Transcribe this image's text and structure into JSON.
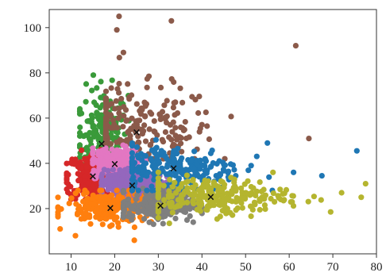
{
  "chart_data": {
    "type": "scatter",
    "title": "",
    "xlabel": "",
    "ylabel": "",
    "xlim": [
      5,
      80
    ],
    "ylim": [
      0,
      108
    ],
    "x_ticks": [
      10,
      20,
      30,
      40,
      50,
      60,
      70,
      80
    ],
    "y_ticks": [
      20,
      40,
      60,
      80,
      100
    ],
    "x_tick_labels": [
      "10",
      "20",
      "30",
      "40",
      "50",
      "60",
      "70",
      "80"
    ],
    "y_tick_labels": [
      "20",
      "40",
      "60",
      "80",
      "100"
    ],
    "grid": false,
    "legend": "none",
    "point_count_per_cluster": "dense",
    "clusters": [
      {
        "color": "#3a9a3a",
        "centroid": [
          17,
          49
        ],
        "spread": [
          3.0,
          12.0
        ],
        "range_x": [
          12,
          24
        ],
        "range_y": [
          35,
          88
        ]
      },
      {
        "color": "#8b5a4a",
        "centroid": [
          25,
          54
        ],
        "spread": [
          9.0,
          10.0
        ],
        "range_x": [
          18,
          65
        ],
        "range_y": [
          42,
          106
        ]
      },
      {
        "color": "#d62728",
        "centroid": [
          15,
          34.5
        ],
        "spread": [
          3.0,
          5.0
        ],
        "range_x": [
          9,
          22
        ],
        "range_y": [
          24,
          46
        ]
      },
      {
        "color": "#e377c2",
        "centroid": [
          20,
          40
        ],
        "spread": [
          3.0,
          3.5
        ],
        "range_x": [
          15,
          27
        ],
        "range_y": [
          32,
          48
        ]
      },
      {
        "color": "#9467bd",
        "centroid": [
          24,
          30.5
        ],
        "spread": [
          4.0,
          3.0
        ],
        "range_x": [
          17,
          32
        ],
        "range_y": [
          24,
          38
        ]
      },
      {
        "color": "#ff7f0e",
        "centroid": [
          19,
          20.5
        ],
        "spread": [
          5.0,
          3.5
        ],
        "range_x": [
          7,
          30
        ],
        "range_y": [
          8,
          28
        ]
      },
      {
        "color": "#7f7f7f",
        "centroid": [
          30.5,
          21.5
        ],
        "spread": [
          4.5,
          3.5
        ],
        "range_x": [
          22,
          40
        ],
        "range_y": [
          12,
          30
        ]
      },
      {
        "color": "#1f77b4",
        "centroid": [
          33.5,
          38
        ],
        "spread": [
          8.0,
          5.0
        ],
        "range_x": [
          24,
          76
        ],
        "range_y": [
          28,
          55
        ]
      },
      {
        "color": "#b5b52f",
        "centroid": [
          42,
          25.5
        ],
        "spread": [
          9.0,
          4.0
        ],
        "range_x": [
          30,
          78
        ],
        "range_y": [
          11,
          36
        ]
      }
    ],
    "centroid_marker": {
      "symbol": "×",
      "color": "#111111"
    },
    "outliers": [
      {
        "x": 21,
        "y": 105,
        "color": "#8b5a4a"
      },
      {
        "x": 33,
        "y": 103,
        "color": "#8b5a4a"
      },
      {
        "x": 20.5,
        "y": 99,
        "color": "#8b5a4a"
      },
      {
        "x": 61.5,
        "y": 92,
        "color": "#8b5a4a"
      },
      {
        "x": 22,
        "y": 89,
        "color": "#8b5a4a"
      },
      {
        "x": 64.5,
        "y": 51,
        "color": "#8b5a4a"
      },
      {
        "x": 55,
        "y": 49,
        "color": "#1f77b4"
      },
      {
        "x": 75.5,
        "y": 45.5,
        "color": "#1f77b4"
      },
      {
        "x": 67.5,
        "y": 34.5,
        "color": "#1f77b4"
      },
      {
        "x": 61,
        "y": 36,
        "color": "#1f77b4"
      },
      {
        "x": 77.5,
        "y": 31,
        "color": "#b5b52f"
      },
      {
        "x": 76.5,
        "y": 25,
        "color": "#b5b52f"
      },
      {
        "x": 72,
        "y": 27,
        "color": "#b5b52f"
      },
      {
        "x": 69.5,
        "y": 18.5,
        "color": "#b5b52f"
      },
      {
        "x": 11,
        "y": 8,
        "color": "#ff7f0e"
      },
      {
        "x": 24.5,
        "y": 6,
        "color": "#ff7f0e"
      },
      {
        "x": 7.5,
        "y": 11,
        "color": "#ff7f0e"
      }
    ]
  }
}
